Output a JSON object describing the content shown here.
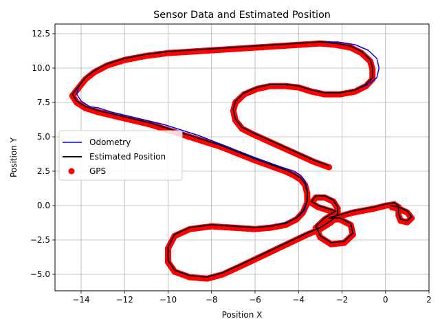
{
  "chart_data": {
    "type": "line",
    "title": "Sensor Data and Estimated Position",
    "xlabel": "Position X",
    "ylabel": "Position Y",
    "xlim": [
      -15.2,
      2.0
    ],
    "ylim": [
      -6.2,
      13.2
    ],
    "xticks": [
      -14,
      -12,
      -10,
      -8,
      -6,
      -4,
      -2,
      0,
      2
    ],
    "yticks": [
      -5.0,
      -2.5,
      0.0,
      2.5,
      5.0,
      7.5,
      10.0,
      12.5
    ],
    "xtick_labels": [
      "−14",
      "−12",
      "−10",
      "−8",
      "−6",
      "−4",
      "−2",
      "0",
      "2"
    ],
    "ytick_labels": [
      "−5.0",
      "−2.5",
      "0.0",
      "2.5",
      "5.0",
      "7.5",
      "10.0",
      "12.5"
    ],
    "grid": true,
    "legend_position": "center-left",
    "series": [
      {
        "name": "Odometry",
        "style": "line",
        "color": "#0000ff",
        "points": [
          [
            -2.6,
            2.9
          ],
          [
            -3.3,
            3.3
          ],
          [
            -4.0,
            3.8
          ],
          [
            -4.7,
            4.3
          ],
          [
            -5.4,
            4.8
          ],
          [
            -6.1,
            5.3
          ],
          [
            -6.6,
            5.7
          ],
          [
            -6.9,
            6.3
          ],
          [
            -7.0,
            7.0
          ],
          [
            -6.9,
            7.6
          ],
          [
            -6.5,
            8.2
          ],
          [
            -5.9,
            8.6
          ],
          [
            -5.3,
            8.8
          ],
          [
            -4.6,
            8.8
          ],
          [
            -4.0,
            8.7
          ],
          [
            -3.4,
            8.4
          ],
          [
            -2.8,
            8.2
          ],
          [
            -2.1,
            8.2
          ],
          [
            -1.4,
            8.4
          ],
          [
            -0.8,
            8.8
          ],
          [
            -0.4,
            9.3
          ],
          [
            -0.3,
            10.0
          ],
          [
            -0.4,
            10.7
          ],
          [
            -0.8,
            11.3
          ],
          [
            -1.4,
            11.7
          ],
          [
            -2.2,
            11.9
          ],
          [
            -3.0,
            11.9
          ],
          [
            -4.0,
            11.8
          ],
          [
            -5.0,
            11.7
          ],
          [
            -6.0,
            11.6
          ],
          [
            -7.0,
            11.5
          ],
          [
            -8.0,
            11.4
          ],
          [
            -9.0,
            11.3
          ],
          [
            -10.0,
            11.2
          ],
          [
            -11.0,
            11.0
          ],
          [
            -12.0,
            10.7
          ],
          [
            -12.8,
            10.3
          ],
          [
            -13.4,
            9.8
          ],
          [
            -13.8,
            9.3
          ],
          [
            -14.1,
            8.7
          ],
          [
            -14.2,
            8.1
          ],
          [
            -14.0,
            7.6
          ],
          [
            -13.6,
            7.2
          ],
          [
            -13.2,
            7.1
          ],
          [
            -12.6,
            6.8
          ],
          [
            -11.8,
            6.5
          ],
          [
            -11.0,
            6.2
          ],
          [
            -10.2,
            5.9
          ],
          [
            -9.4,
            5.5
          ],
          [
            -8.6,
            5.1
          ],
          [
            -7.8,
            4.6
          ],
          [
            -7.0,
            4.1
          ],
          [
            -6.2,
            3.6
          ],
          [
            -5.5,
            3.2
          ],
          [
            -4.8,
            2.8
          ],
          [
            -4.2,
            2.5
          ],
          [
            -3.9,
            2.2
          ],
          [
            -3.7,
            1.8
          ],
          [
            -3.6,
            1.2
          ],
          [
            -3.6,
            0.5
          ],
          [
            -3.7,
            -0.3
          ],
          [
            -4.0,
            -0.8
          ],
          [
            -4.5,
            -1.2
          ],
          [
            -5.2,
            -1.5
          ],
          [
            -6.0,
            -1.6
          ],
          [
            -7.0,
            -1.5
          ],
          [
            -8.0,
            -1.4
          ],
          [
            -9.0,
            -1.6
          ],
          [
            -9.7,
            -2.1
          ],
          [
            -10.0,
            -3.0
          ],
          [
            -10.0,
            -4.0
          ],
          [
            -9.7,
            -4.7
          ],
          [
            -9.0,
            -5.1
          ],
          [
            -8.2,
            -5.2
          ],
          [
            -7.5,
            -4.9
          ],
          [
            -6.8,
            -4.4
          ],
          [
            -6.0,
            -3.8
          ],
          [
            -5.2,
            -3.2
          ],
          [
            -4.4,
            -2.6
          ],
          [
            -3.6,
            -2.0
          ],
          [
            -3.0,
            -1.6
          ],
          [
            -2.5,
            -1.1
          ],
          [
            -2.2,
            -0.6
          ],
          [
            -2.2,
            -0.1
          ],
          [
            -2.4,
            0.4
          ],
          [
            -2.8,
            0.7
          ],
          [
            -3.2,
            0.7
          ],
          [
            -3.4,
            0.3
          ],
          [
            -3.1,
            0.0
          ],
          [
            -2.7,
            -0.2
          ],
          [
            -2.3,
            -0.4
          ],
          [
            -2.8,
            -0.9
          ],
          [
            -3.2,
            -1.5
          ],
          [
            -3.0,
            -2.2
          ],
          [
            -2.5,
            -2.7
          ],
          [
            -1.9,
            -2.6
          ],
          [
            -1.5,
            -2.0
          ],
          [
            -1.6,
            -1.3
          ],
          [
            -2.1,
            -0.9
          ],
          [
            -2.6,
            -0.9
          ],
          [
            -1.5,
            -0.4
          ],
          [
            -0.5,
            -0.1
          ],
          [
            0.0,
            0.1
          ],
          [
            0.4,
            0.2
          ],
          [
            0.6,
            0.0
          ],
          [
            0.6,
            -0.6
          ],
          [
            0.7,
            -1.0
          ],
          [
            1.0,
            -1.1
          ],
          [
            1.2,
            -0.8
          ],
          [
            1.0,
            -0.4
          ],
          [
            0.6,
            -0.1
          ],
          [
            0.2,
            0.0
          ]
        ]
      },
      {
        "name": "Estimated Position",
        "style": "line",
        "color": "#000000",
        "points": [
          [
            -2.6,
            2.9
          ],
          [
            -3.3,
            3.3
          ],
          [
            -4.0,
            3.8
          ],
          [
            -4.7,
            4.3
          ],
          [
            -5.4,
            4.8
          ],
          [
            -6.1,
            5.3
          ],
          [
            -6.6,
            5.7
          ],
          [
            -6.9,
            6.3
          ],
          [
            -7.0,
            7.0
          ],
          [
            -6.9,
            7.6
          ],
          [
            -6.5,
            8.2
          ],
          [
            -5.9,
            8.6
          ],
          [
            -5.3,
            8.8
          ],
          [
            -4.6,
            8.8
          ],
          [
            -4.0,
            8.7
          ],
          [
            -3.4,
            8.4
          ],
          [
            -2.8,
            8.2
          ],
          [
            -2.1,
            8.2
          ],
          [
            -1.4,
            8.4
          ],
          [
            -0.9,
            8.8
          ],
          [
            -0.6,
            9.3
          ],
          [
            -0.6,
            10.0
          ],
          [
            -0.7,
            10.6
          ],
          [
            -1.1,
            11.2
          ],
          [
            -1.6,
            11.6
          ],
          [
            -2.3,
            11.8
          ],
          [
            -3.0,
            11.9
          ],
          [
            -4.0,
            11.8
          ],
          [
            -5.0,
            11.7
          ],
          [
            -6.0,
            11.6
          ],
          [
            -7.0,
            11.5
          ],
          [
            -8.0,
            11.4
          ],
          [
            -9.0,
            11.3
          ],
          [
            -10.0,
            11.2
          ],
          [
            -11.0,
            11.0
          ],
          [
            -12.0,
            10.7
          ],
          [
            -12.8,
            10.3
          ],
          [
            -13.4,
            9.8
          ],
          [
            -13.8,
            9.3
          ],
          [
            -14.1,
            8.7
          ],
          [
            -14.4,
            8.1
          ],
          [
            -14.2,
            7.6
          ],
          [
            -13.8,
            7.2
          ],
          [
            -13.2,
            6.9
          ],
          [
            -12.4,
            6.6
          ],
          [
            -11.6,
            6.3
          ],
          [
            -10.8,
            6.0
          ],
          [
            -10.0,
            5.6
          ],
          [
            -9.2,
            5.2
          ],
          [
            -8.4,
            4.8
          ],
          [
            -7.6,
            4.4
          ],
          [
            -6.8,
            3.9
          ],
          [
            -6.0,
            3.4
          ],
          [
            -5.3,
            3.0
          ],
          [
            -4.6,
            2.6
          ],
          [
            -4.2,
            2.3
          ],
          [
            -3.9,
            2.0
          ],
          [
            -3.7,
            1.6
          ],
          [
            -3.6,
            1.0
          ],
          [
            -3.6,
            0.3
          ],
          [
            -3.8,
            -0.4
          ],
          [
            -4.1,
            -0.9
          ],
          [
            -4.6,
            -1.3
          ],
          [
            -5.3,
            -1.5
          ],
          [
            -6.0,
            -1.6
          ],
          [
            -7.0,
            -1.5
          ],
          [
            -8.0,
            -1.4
          ],
          [
            -9.0,
            -1.6
          ],
          [
            -9.7,
            -2.1
          ],
          [
            -10.0,
            -3.0
          ],
          [
            -10.0,
            -4.0
          ],
          [
            -9.7,
            -4.7
          ],
          [
            -9.0,
            -5.1
          ],
          [
            -8.2,
            -5.2
          ],
          [
            -7.5,
            -4.9
          ],
          [
            -6.8,
            -4.4
          ],
          [
            -6.0,
            -3.8
          ],
          [
            -5.2,
            -3.2
          ],
          [
            -4.4,
            -2.6
          ],
          [
            -3.6,
            -2.0
          ],
          [
            -3.0,
            -1.6
          ],
          [
            -2.5,
            -1.1
          ],
          [
            -2.2,
            -0.6
          ],
          [
            -2.2,
            -0.1
          ],
          [
            -2.4,
            0.4
          ],
          [
            -2.8,
            0.7
          ],
          [
            -3.2,
            0.7
          ],
          [
            -3.4,
            0.3
          ],
          [
            -3.1,
            0.0
          ],
          [
            -2.7,
            -0.2
          ],
          [
            -2.3,
            -0.4
          ],
          [
            -2.8,
            -0.9
          ],
          [
            -3.2,
            -1.5
          ],
          [
            -3.0,
            -2.2
          ],
          [
            -2.5,
            -2.7
          ],
          [
            -1.9,
            -2.6
          ],
          [
            -1.5,
            -2.0
          ],
          [
            -1.6,
            -1.3
          ],
          [
            -2.1,
            -0.9
          ],
          [
            -2.6,
            -0.9
          ],
          [
            -1.5,
            -0.4
          ],
          [
            -0.5,
            -0.1
          ],
          [
            0.0,
            0.1
          ],
          [
            0.4,
            0.2
          ],
          [
            0.6,
            0.0
          ],
          [
            0.6,
            -0.6
          ],
          [
            0.7,
            -1.0
          ],
          [
            1.0,
            -1.1
          ],
          [
            1.2,
            -0.8
          ],
          [
            1.0,
            -0.4
          ],
          [
            0.6,
            -0.1
          ],
          [
            0.2,
            0.0
          ]
        ]
      },
      {
        "name": "GPS",
        "style": "scatter",
        "color": "#ff0000"
      }
    ]
  }
}
